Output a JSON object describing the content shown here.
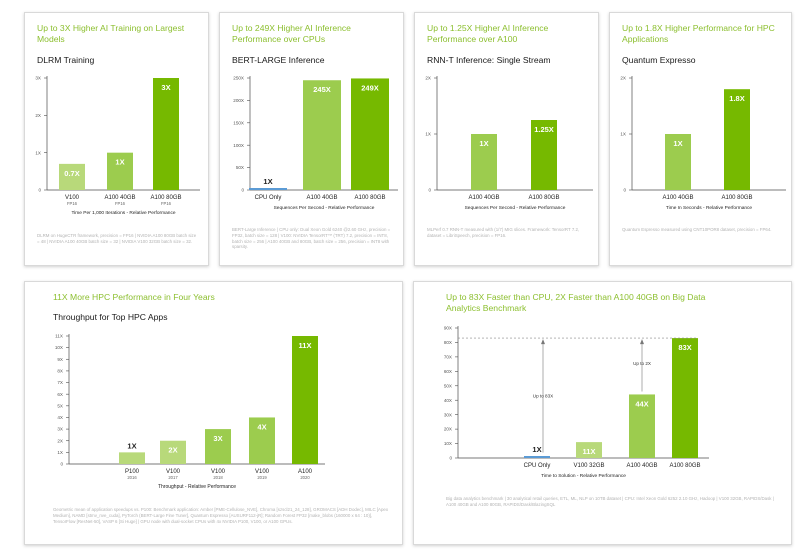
{
  "colors": {
    "accent": "#8cbf2f",
    "bar_dark": "#76b900",
    "bar_mid": "#9ccc4e",
    "bar_light": "#b8d97a",
    "bar_blue": "#5b9bd5",
    "axis": "#4d4d4d"
  },
  "chart_data": [
    {
      "id": "dlrm",
      "type": "bar",
      "title": "Up to 3X Higher AI Training on Largest Models",
      "subtitle": "DLRM Training",
      "categories": [
        "V100",
        "A100 40GB",
        "A100 80GB"
      ],
      "category_sublabels": [
        "FP16",
        "FP16",
        "FP16"
      ],
      "values": [
        0.7,
        1,
        3
      ],
      "data_labels": [
        "0.7X",
        "1X",
        "3X"
      ],
      "yticks": [
        0,
        1,
        2,
        3
      ],
      "ytick_labels": [
        "0",
        "1X",
        "2X",
        "3X"
      ],
      "ylim": [
        0,
        3
      ],
      "xlabel": "Time Per 1,000 Iterations - Relative Performance",
      "ylabel": "",
      "footnote": "DLRM on HugeCTR framework, precision = FP16 | NVIDIA A100 80GB batch size = 48 | NVIDIA A100 40GB batch size = 32 | NVIDIA V100 32GB batch size = 32."
    },
    {
      "id": "bert",
      "type": "bar",
      "title": "Up to 249X Higher AI Inference Performance over CPUs",
      "subtitle": "BERT-LARGE Inference",
      "categories": [
        "CPU Only",
        "A100 40GB",
        "A100 80GB"
      ],
      "category_sublabels": [
        "",
        "",
        ""
      ],
      "values": [
        1,
        245,
        249
      ],
      "data_labels": [
        "1X",
        "245X",
        "249X"
      ],
      "yticks": [
        0,
        50,
        100,
        150,
        200,
        250
      ],
      "ytick_labels": [
        "0",
        "50X",
        "100X",
        "150X",
        "200X",
        "250X"
      ],
      "ylim": [
        0,
        250
      ],
      "xlabel": "Sequences Per Second - Relative Performance",
      "ylabel": "",
      "footnote": "BERT-Large Inference | CPU only: Dual Xeon Gold 6240 @2.60 GHz, precision = FP32, batch size = 128 | V100: NVIDIA TensorRT™ (TRT) 7.2, precision = INT8, batch size = 256 | A100 40GB and 80GB, batch size = 256, precision = INT8 with sparsity."
    },
    {
      "id": "rnnt",
      "type": "bar",
      "title": "Up to 1.25X Higher AI Inference Performance over A100",
      "subtitle": "RNN-T Inference: Single Stream",
      "categories": [
        "A100 40GB",
        "A100 80GB"
      ],
      "category_sublabels": [
        "",
        ""
      ],
      "values": [
        1,
        1.25
      ],
      "data_labels": [
        "1X",
        "1.25X"
      ],
      "yticks": [
        0,
        1,
        2
      ],
      "ytick_labels": [
        "0",
        "1X",
        "2X"
      ],
      "ylim": [
        0,
        2
      ],
      "xlabel": "Sequences Per Second - Relative Performance",
      "ylabel": "",
      "footnote": "MLPerf 0.7 RNN-T measured with (1/7) MIG slices. Framework: TensorRT 7.2, dataset = LibriSpeech, precision = FP16."
    },
    {
      "id": "qe",
      "type": "bar",
      "title": "Up to 1.8X Higher Performance for HPC Applications",
      "subtitle": "Quantum Expresso",
      "categories": [
        "A100 40GB",
        "A100 80GB"
      ],
      "category_sublabels": [
        "",
        ""
      ],
      "values": [
        1,
        1.8
      ],
      "data_labels": [
        "1X",
        "1.8X"
      ],
      "yticks": [
        0,
        1,
        2
      ],
      "ytick_labels": [
        "0",
        "1X",
        "2X"
      ],
      "ylim": [
        0,
        2
      ],
      "xlabel": "Time In Seconds - Relative Performance",
      "ylabel": "",
      "footnote": "Quantum Espresso measured using CNT10POR8 dataset, precision = FP64."
    },
    {
      "id": "hpc",
      "type": "bar",
      "title": "11X More HPC Performance in Four Years",
      "subtitle": "Throughput for Top HPC Apps",
      "categories": [
        "P100",
        "V100",
        "V100",
        "V100",
        "A100"
      ],
      "category_sublabels": [
        "2016",
        "2017",
        "2018",
        "2019",
        "2020"
      ],
      "values": [
        1,
        2,
        3,
        4,
        11
      ],
      "data_labels": [
        "1X",
        "2X",
        "3X",
        "4X",
        "11X"
      ],
      "yticks": [
        0,
        1,
        2,
        3,
        4,
        5,
        6,
        7,
        8,
        9,
        10,
        11
      ],
      "ytick_labels": [
        "0",
        "1X",
        "2X",
        "3X",
        "4X",
        "5X",
        "6X",
        "7X",
        "8X",
        "9X",
        "10X",
        "11X"
      ],
      "ylim": [
        0,
        11
      ],
      "xlabel": "Throughput - Relative Performance",
      "ylabel": "",
      "footnote": "Geometric mean of application speedups vs. P100: Benchmark application: Amber [PME-Cellulose_NVE], Chroma [szscl21_24_128], GROMACS [ADH Dodec], MILC [Apex Medium], NAMD [stmv_nve_cuda], PyTorch (BERT-Large Fine Tuner], Quantum Espresso [AUSURF112-jR]; Random Forest FP32 [make_blobs (160000 x 64 : 10)], TensorFlow [ResNet-50], VASP 6 [Si Huge] | GPU node with dual-socket CPUs with 4x NVIDIA P100, V100, or A100 GPUs."
    },
    {
      "id": "bigdata",
      "type": "bar",
      "title": "Up to 83X Faster than CPU, 2X Faster than A100 40GB on Big Data Analytics Benchmark",
      "subtitle": "",
      "categories": [
        "CPU Only",
        "V100 32GB",
        "A100 40GB",
        "A100 80GB"
      ],
      "category_sublabels": [
        "",
        "",
        "",
        ""
      ],
      "values": [
        1,
        11,
        44,
        83
      ],
      "data_labels": [
        "1X",
        "11X",
        "44X",
        "83X"
      ],
      "yticks": [
        0,
        10,
        20,
        30,
        40,
        50,
        60,
        70,
        80,
        90
      ],
      "ytick_labels": [
        "0",
        "10X",
        "20X",
        "30X",
        "40X",
        "50X",
        "60X",
        "70X",
        "80X",
        "90X"
      ],
      "ylim": [
        0,
        90
      ],
      "xlabel": "Time to Solution - Relative Performance",
      "ylabel": "",
      "annotations": [
        "Up to 83X",
        "Up to 2X"
      ],
      "footnote": "Big data analytics benchmark | 30 analytical retail queries, ETL, ML, NLP on 10TB dataset | CPU: Intel Xeon Gold 6252 2.10 GHz, Hadoop | V100 32GB, RAPIDS/Dask | A100 40GB and A100 80GB, RAPIDS/Dask/BlazingSQL"
    }
  ]
}
